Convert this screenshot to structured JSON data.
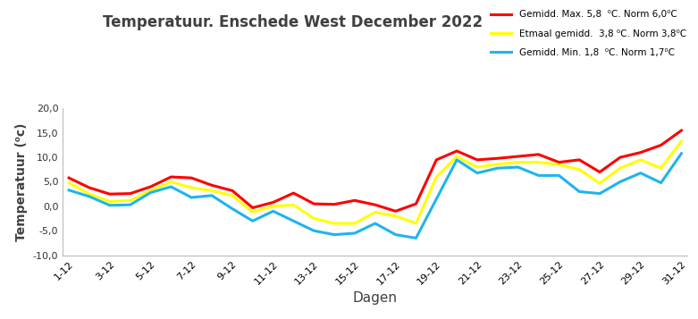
{
  "chart_data": {
    "type": "line",
    "title": "Temperatuur. Enschede West December 2022",
    "x_label": "Dagen",
    "y_label": "Temperatuur (⁰c)",
    "categories": [
      "1-12",
      null,
      "3-12",
      null,
      "5-12",
      null,
      "7-12",
      null,
      "9-12",
      null,
      "11-12",
      null,
      "13-12",
      null,
      "15-12",
      null,
      "17-12",
      null,
      "19-12",
      null,
      "21-12",
      null,
      "23-12",
      null,
      "25-12",
      null,
      "27-12",
      null,
      "29-12",
      null,
      "31-12"
    ],
    "series": [
      {
        "name": "Gemidd. Max. 5,8  ⁰C. Norm 6,0⁰C",
        "color": "#ff0000",
        "values": [
          5.8,
          3.8,
          2.5,
          2.6,
          4.0,
          6.0,
          5.8,
          4.3,
          3.2,
          -0.3,
          0.8,
          2.7,
          0.5,
          0.4,
          1.2,
          0.3,
          -1.0,
          0.5,
          9.5,
          11.3,
          9.5,
          9.8,
          10.2,
          10.6,
          9.0,
          9.5,
          7.0,
          10.0,
          11.0,
          12.5,
          15.5
        ]
      },
      {
        "name": "Etmaal gemidd.  3,8 ⁰C. Norm 3,8⁰C",
        "color": "#ffff00",
        "values": [
          4.8,
          2.5,
          1.0,
          1.2,
          3.2,
          5.0,
          3.8,
          3.2,
          2.2,
          -1.2,
          0.0,
          0.3,
          -2.5,
          -3.5,
          -3.5,
          -1.2,
          -2.0,
          -3.5,
          6.0,
          10.2,
          8.0,
          8.6,
          9.0,
          9.0,
          8.5,
          7.5,
          4.7,
          7.8,
          9.5,
          7.8,
          13.3
        ]
      },
      {
        "name": "Gemidd. Min. 1,8  ⁰C. Norm 1,7⁰C",
        "color": "#1fb4ec",
        "values": [
          3.3,
          2.0,
          0.2,
          0.3,
          2.8,
          4.0,
          1.8,
          2.2,
          -0.5,
          -3.0,
          -1.0,
          -3.0,
          -5.0,
          -5.8,
          -5.5,
          -3.5,
          -5.8,
          -6.5,
          1.5,
          9.5,
          6.8,
          7.8,
          8.0,
          6.3,
          6.3,
          3.0,
          2.6,
          5.0,
          6.8,
          4.8,
          10.8
        ]
      }
    ],
    "ylim": [
      -10,
      20
    ],
    "yticks": [
      {
        "value": -10,
        "label": "-10,0"
      },
      {
        "value": -5,
        "label": "-5,0"
      },
      {
        "value": 0,
        "label": "0,0"
      },
      {
        "value": 5,
        "label": "5,0"
      },
      {
        "value": 10,
        "label": "10,0"
      },
      {
        "value": 15,
        "label": "15,0"
      },
      {
        "value": 20,
        "label": "20,0"
      }
    ],
    "grid": false,
    "legend": "upper right"
  }
}
